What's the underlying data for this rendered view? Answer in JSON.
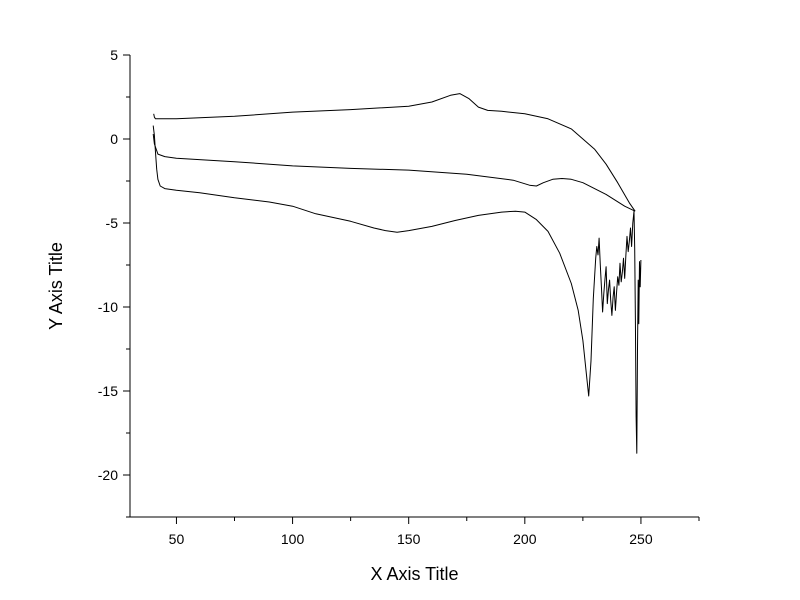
{
  "chart_data": {
    "type": "line",
    "xlabel": "X Axis Title",
    "ylabel": "Y Axis Title",
    "xlim": [
      30,
      275
    ],
    "ylim": [
      -22.5,
      5
    ],
    "x_ticks": [
      50,
      100,
      150,
      200,
      250
    ],
    "y_ticks": [
      5,
      0,
      -5,
      -10,
      -15,
      -20
    ],
    "x_tick_labels": [
      "50",
      "100",
      "150",
      "200",
      "250"
    ],
    "y_tick_labels": [
      "5",
      "0",
      "-5",
      "-10",
      "-15",
      "-20"
    ],
    "grid": false,
    "line_color": "#000000",
    "series": [
      {
        "x": [
          40.2,
          40.5,
          41,
          50,
          75,
          100,
          125,
          150,
          160,
          168,
          172,
          176,
          180,
          184,
          190,
          200,
          210,
          220,
          230,
          235,
          240,
          245,
          247.5
        ],
        "y": [
          1.5,
          1.3,
          1.2,
          1.2,
          1.35,
          1.6,
          1.75,
          1.95,
          2.2,
          2.6,
          2.7,
          2.4,
          1.9,
          1.7,
          1.65,
          1.5,
          1.2,
          0.6,
          -0.6,
          -1.5,
          -2.6,
          -3.8,
          -4.3
        ]
      },
      {
        "x": [
          40,
          40.5,
          42,
          45,
          50,
          75,
          100,
          125,
          150,
          175,
          195,
          202,
          205,
          208,
          212,
          216,
          220,
          225,
          235,
          243,
          247.5
        ],
        "y": [
          0.3,
          -0.3,
          -0.9,
          -1.05,
          -1.15,
          -1.35,
          -1.6,
          -1.75,
          -1.85,
          -2.1,
          -2.45,
          -2.75,
          -2.8,
          -2.6,
          -2.4,
          -2.35,
          -2.4,
          -2.6,
          -3.3,
          -4.0,
          -4.3
        ]
      },
      {
        "x": [
          40,
          40.5,
          41,
          41.5,
          42,
          43,
          45,
          50,
          60,
          75,
          90,
          100,
          110,
          125,
          135,
          140,
          145,
          150,
          160,
          170,
          180,
          190,
          196,
          200,
          205,
          210,
          215,
          220,
          223,
          225,
          226.5,
          227.5,
          228.5,
          229.5,
          230.5,
          231,
          231.5,
          232,
          232.5,
          233,
          233.5,
          234,
          234.5,
          235,
          235.5,
          236,
          236.5,
          237,
          237.5,
          238,
          238.5,
          239,
          239.5,
          240,
          240.5,
          241,
          241.5,
          242,
          242.5,
          243,
          243.5,
          244,
          244.5,
          245,
          245.5,
          246,
          246.5,
          247,
          247.3,
          247.6,
          247.9,
          248.2,
          248.5,
          248.8,
          249.1,
          249.4,
          249.7,
          250
        ],
        "y": [
          0.8,
          0.2,
          -0.8,
          -1.8,
          -2.4,
          -2.8,
          -2.95,
          -3.05,
          -3.2,
          -3.5,
          -3.75,
          -4.0,
          -4.45,
          -4.9,
          -5.3,
          -5.45,
          -5.55,
          -5.45,
          -5.2,
          -4.85,
          -4.55,
          -4.35,
          -4.3,
          -4.35,
          -4.8,
          -5.5,
          -6.8,
          -8.6,
          -10.2,
          -12.0,
          -14.0,
          -15.3,
          -13.2,
          -9.5,
          -7.1,
          -6.4,
          -6.9,
          -5.9,
          -7.5,
          -8.9,
          -10.3,
          -9.2,
          -8.4,
          -7.6,
          -9.8,
          -9.0,
          -8.4,
          -9.6,
          -10.5,
          -9.4,
          -8.8,
          -10.2,
          -9.1,
          -8.2,
          -8.7,
          -7.4,
          -8.5,
          -7.9,
          -7.1,
          -8.3,
          -7.0,
          -5.8,
          -6.7,
          -6.1,
          -5.3,
          -6.4,
          -5.0,
          -4.3,
          -6.5,
          -10.8,
          -16.5,
          -18.7,
          -12.5,
          -8.4,
          -11.0,
          -7.3,
          -8.8,
          -7.2
        ]
      }
    ]
  }
}
